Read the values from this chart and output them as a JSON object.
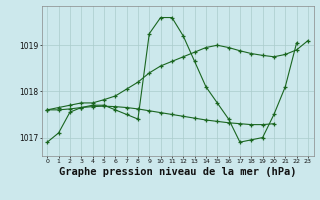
{
  "title": "Graphe pression niveau de la mer (hPa)",
  "background_color": "#cce8ec",
  "grid_color": "#aacccc",
  "line_color": "#1a6620",
  "x_labels": [
    "0",
    "1",
    "2",
    "3",
    "4",
    "5",
    "6",
    "7",
    "8",
    "9",
    "10",
    "11",
    "12",
    "13",
    "14",
    "15",
    "16",
    "17",
    "18",
    "19",
    "20",
    "21",
    "22",
    "23"
  ],
  "line1": [
    1016.9,
    1017.1,
    1017.55,
    1017.65,
    1017.7,
    1017.7,
    1017.6,
    1017.5,
    1017.4,
    1019.25,
    1019.6,
    1019.6,
    1019.2,
    1018.65,
    1018.1,
    1017.75,
    1017.4,
    1016.9,
    1016.95,
    1017.0,
    1017.5,
    1018.1,
    1019.05,
    null
  ],
  "line2": [
    1017.6,
    1017.65,
    1017.7,
    1017.75,
    1017.75,
    1017.82,
    1017.9,
    1018.05,
    1018.2,
    1018.4,
    1018.55,
    1018.65,
    1018.75,
    1018.85,
    1018.95,
    1019.0,
    1018.95,
    1018.88,
    1018.82,
    1018.78,
    1018.75,
    1018.8,
    1018.9,
    1019.1
  ],
  "line3": [
    1017.6,
    1017.6,
    1017.62,
    1017.65,
    1017.67,
    1017.68,
    1017.67,
    1017.65,
    1017.62,
    1017.58,
    1017.54,
    1017.5,
    1017.46,
    1017.42,
    1017.38,
    1017.35,
    1017.32,
    1017.3,
    1017.28,
    1017.28,
    1017.3,
    null,
    null,
    null
  ],
  "ylim": [
    1016.6,
    1019.85
  ],
  "yticks": [
    1017,
    1018,
    1019
  ],
  "title_fontsize": 7.5
}
